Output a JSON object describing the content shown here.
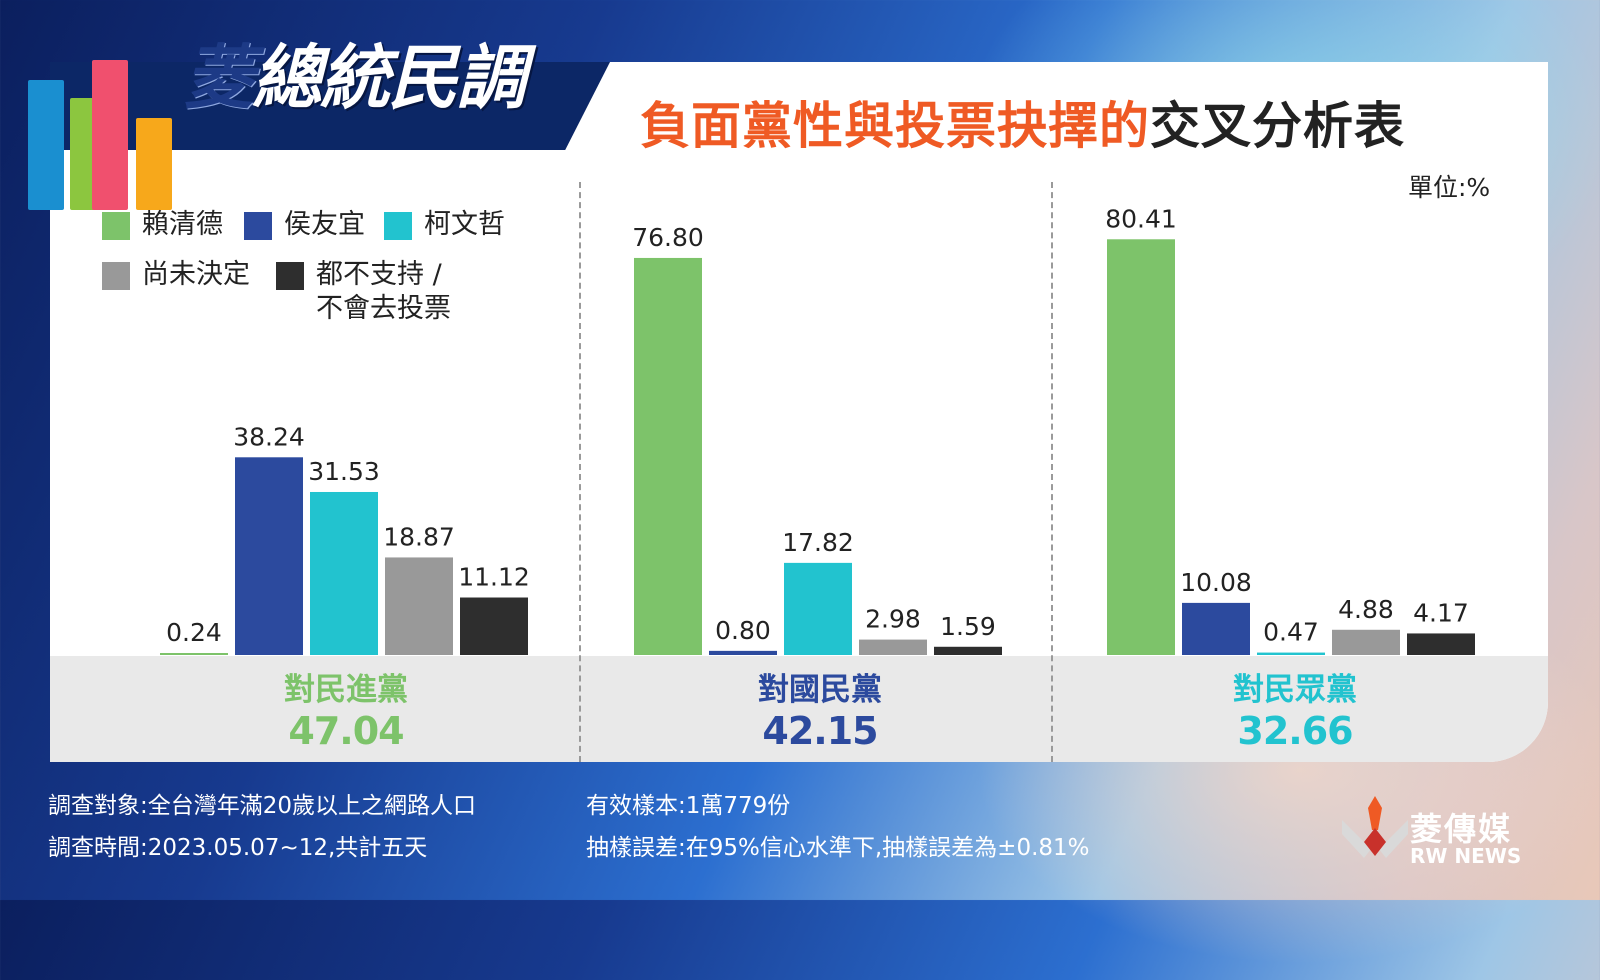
{
  "header": {
    "logo_text_part1": "菱",
    "logo_text_part2": "總統民調",
    "title_highlight": "負面黨性與投票抉擇的",
    "title_rest": "交叉分析表",
    "unit": "單位:%"
  },
  "colors": {
    "賴清德": "#7dc36a",
    "侯友宜": "#2c4a9e",
    "柯文哲": "#22c3cf",
    "尚未決定": "#999999",
    "都不支持/不會去投票": "#2e2e2e"
  },
  "legend": [
    {
      "label": "賴清德",
      "color": "#7dc36a"
    },
    {
      "label": "侯友宜",
      "color": "#2c4a9e"
    },
    {
      "label": "柯文哲",
      "color": "#22c3cf"
    },
    {
      "label": "尚未決定",
      "color": "#999999"
    },
    {
      "label": "都不支持 /\n不會去投票",
      "color": "#2e2e2e"
    }
  ],
  "chart_data": {
    "type": "bar",
    "series_names": [
      "賴清德",
      "侯友宜",
      "柯文哲",
      "尚未決定",
      "都不支持 / 不會去投票"
    ],
    "groups": [
      {
        "name": "對民進黨",
        "total": "47.04",
        "total_color": "#7dc36a",
        "values": [
          0.24,
          38.24,
          31.53,
          18.87,
          11.12
        ],
        "labels": [
          "0.24",
          "38.24",
          "31.53",
          "18.87",
          "11.12"
        ]
      },
      {
        "name": "對國民黨",
        "total": "42.15",
        "total_color": "#2c4a9e",
        "values": [
          76.8,
          0.8,
          17.82,
          2.98,
          1.59
        ],
        "labels": [
          "76.80",
          "0.80",
          "17.82",
          "2.98",
          "1.59"
        ]
      },
      {
        "name": "對民眾黨",
        "total": "32.66",
        "total_color": "#22c3cf",
        "values": [
          80.41,
          10.08,
          0.47,
          4.88,
          4.17
        ],
        "labels": [
          "80.41",
          "10.08",
          "0.47",
          "4.88",
          "4.17"
        ]
      }
    ],
    "unit": "單位:%"
  },
  "footer": {
    "survey_target": "調查對象:全台灣年滿20歲以上之網路人口",
    "survey_time": "調查時間:2023.05.07~12,共計五天",
    "sample": "有效樣本:1萬779份",
    "error": "抽樣誤差:在95%信心水準下,抽樣誤差為±0.81%",
    "brand_name": "菱傳媒",
    "brand_sub": "RW NEWS"
  }
}
